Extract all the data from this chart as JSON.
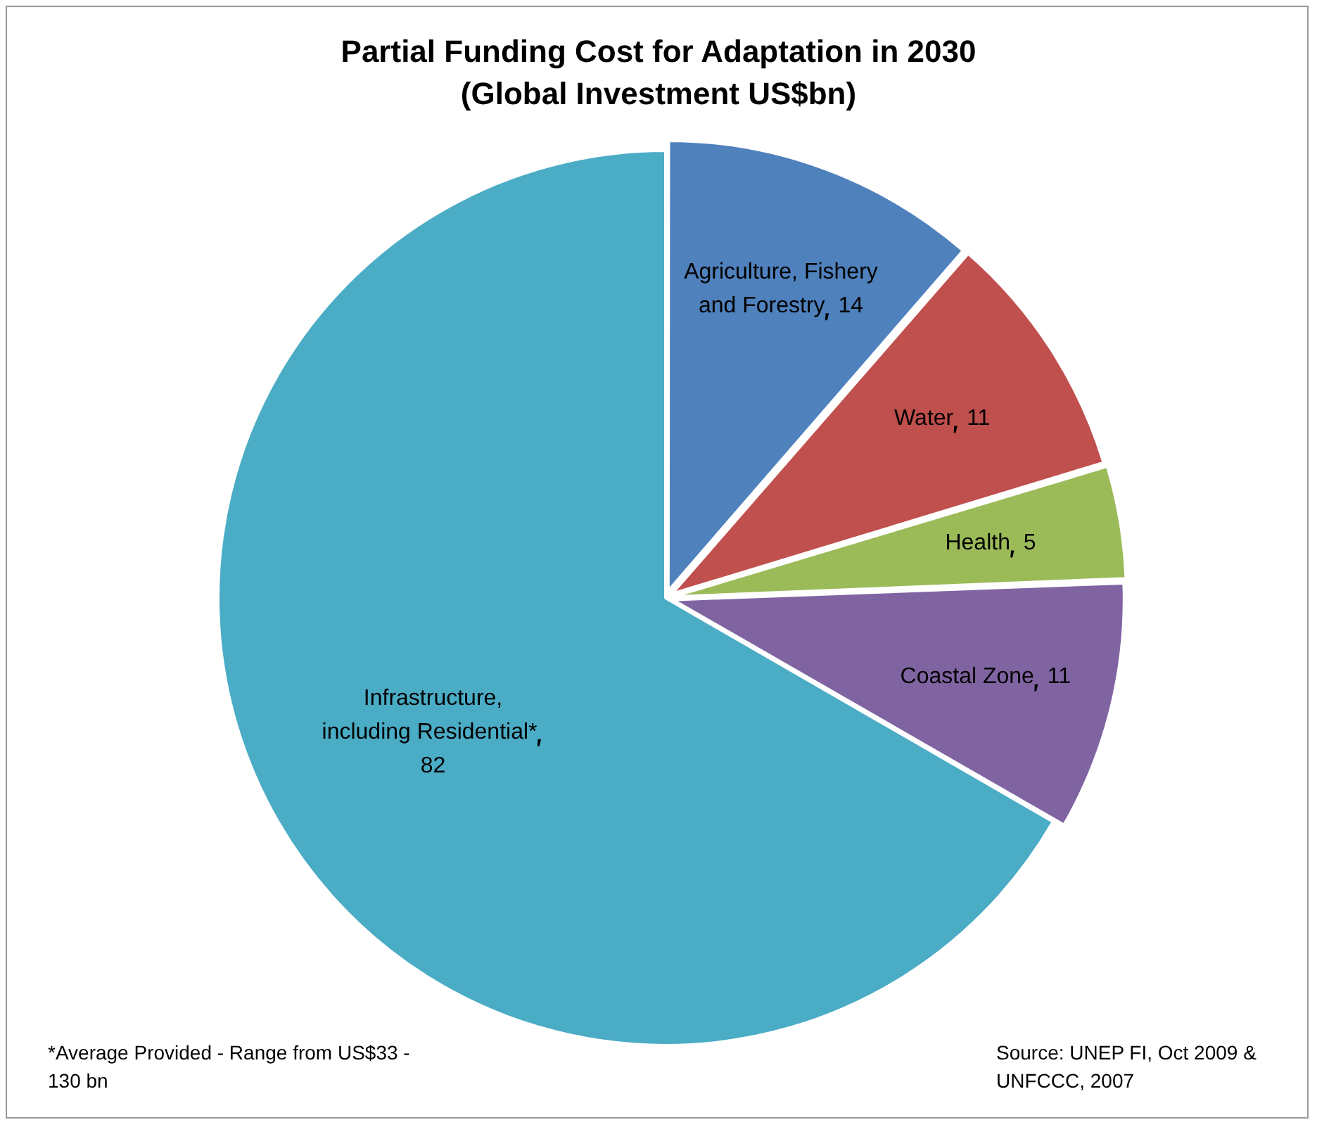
{
  "chart_data": {
    "type": "pie",
    "title": "Partial Funding Cost for Adaptation in 2030",
    "subtitle": "(Global Investment US$bn)",
    "categories": [
      "Agriculture, Fishery and Forestry",
      "Water",
      "Health",
      "Coastal Zone",
      "Infrastructure, including Residential*"
    ],
    "values": [
      14,
      11,
      5,
      11,
      82
    ],
    "colors": [
      "#4f81bd",
      "#c0504d",
      "#9bbb59",
      "#8064a2",
      "#4bacc6"
    ],
    "data_labels": true,
    "legend": false,
    "annotations": [
      "*Average Provided - Range from US$33 - 130 bn",
      "Source: UNEP FI, Oct 2009 & UNFCCC, 2007"
    ]
  }
}
